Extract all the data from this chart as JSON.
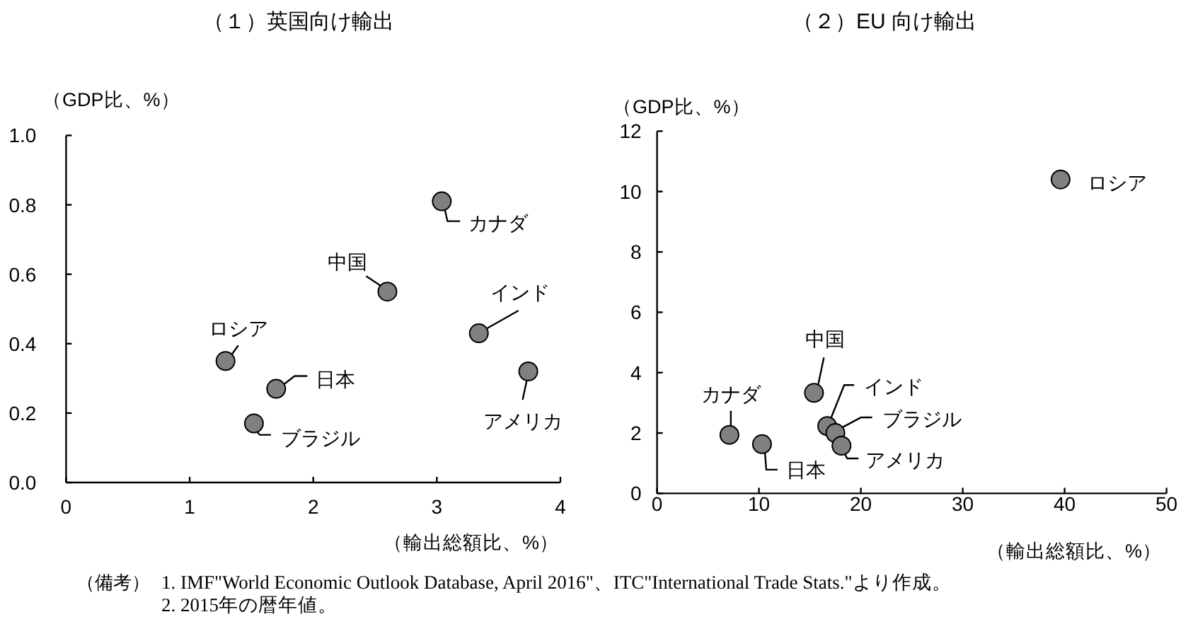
{
  "chart_data": [
    {
      "type": "scatter",
      "title": "（１）英国向け輸出",
      "ylabel": "（GDP比、%）",
      "xlabel": "（輸出総額比、%）",
      "marker": "circle",
      "color": "#808080",
      "x": [
        1.29,
        1.52,
        1.7,
        2.6,
        3.04,
        3.34,
        3.74
      ],
      "values": [
        0.35,
        0.17,
        0.27,
        0.55,
        0.81,
        0.43,
        0.32
      ],
      "xlim": [
        0,
        4
      ],
      "ylim": [
        0,
        1
      ],
      "xticks": [
        0,
        1,
        2,
        3,
        4
      ],
      "yticks": [
        {
          "value": 0,
          "label": "0.0"
        },
        0.2,
        0.4,
        0.6,
        0.8,
        {
          "value": 1,
          "label": "1.0"
        }
      ],
      "annotations": [
        {
          "text": "ロシア",
          "x": 1.29,
          "y": 0.35
        },
        {
          "text": "ブラジル",
          "x": 1.52,
          "y": 0.17
        },
        {
          "text": "日本",
          "x": 1.7,
          "y": 0.27
        },
        {
          "text": "中国",
          "x": 2.6,
          "y": 0.55
        },
        {
          "text": "カナダ",
          "x": 3.04,
          "y": 0.81
        },
        {
          "text": "インド",
          "x": 3.34,
          "y": 0.43
        },
        {
          "text": "アメリカ",
          "x": 3.74,
          "y": 0.32
        },
        "（備考）",
        "1. IMF\"World Economic Outlook Database, April 2016\"、ITC\"International Trade Stats.\"より作成。",
        "2. 2015年の暦年値。"
      ]
    },
    {
      "type": "scatter",
      "title": "（２）EU 向け輸出",
      "ylabel": "（GDP比、%）",
      "xlabel": "（輸出総額比、%）",
      "marker": "circle",
      "color": "#808080",
      "x": [
        7.1,
        10.3,
        15.4,
        16.7,
        17.5,
        18.1,
        39.6
      ],
      "values": [
        1.94,
        1.63,
        3.33,
        2.23,
        2.0,
        1.58,
        10.4
      ],
      "xlim": [
        0,
        50
      ],
      "ylim": [
        0,
        12
      ],
      "xticks": [
        0,
        10,
        20,
        30,
        40,
        50
      ],
      "yticks": [
        0,
        2,
        4,
        6,
        8,
        10,
        12
      ],
      "annotations": [
        {
          "text": "カナダ",
          "x": 7.1,
          "y": 1.94
        },
        {
          "text": "日本",
          "x": 10.3,
          "y": 1.63
        },
        {
          "text": "中国",
          "x": 15.4,
          "y": 3.33
        },
        {
          "text": "インド",
          "x": 16.7,
          "y": 2.23
        },
        {
          "text": "ブラジル",
          "x": 17.5,
          "y": 2.0
        },
        {
          "text": "アメリカ",
          "x": 18.1,
          "y": 1.58
        },
        {
          "text": "ロシア",
          "x": 39.6,
          "y": 10.4
        }
      ]
    }
  ]
}
